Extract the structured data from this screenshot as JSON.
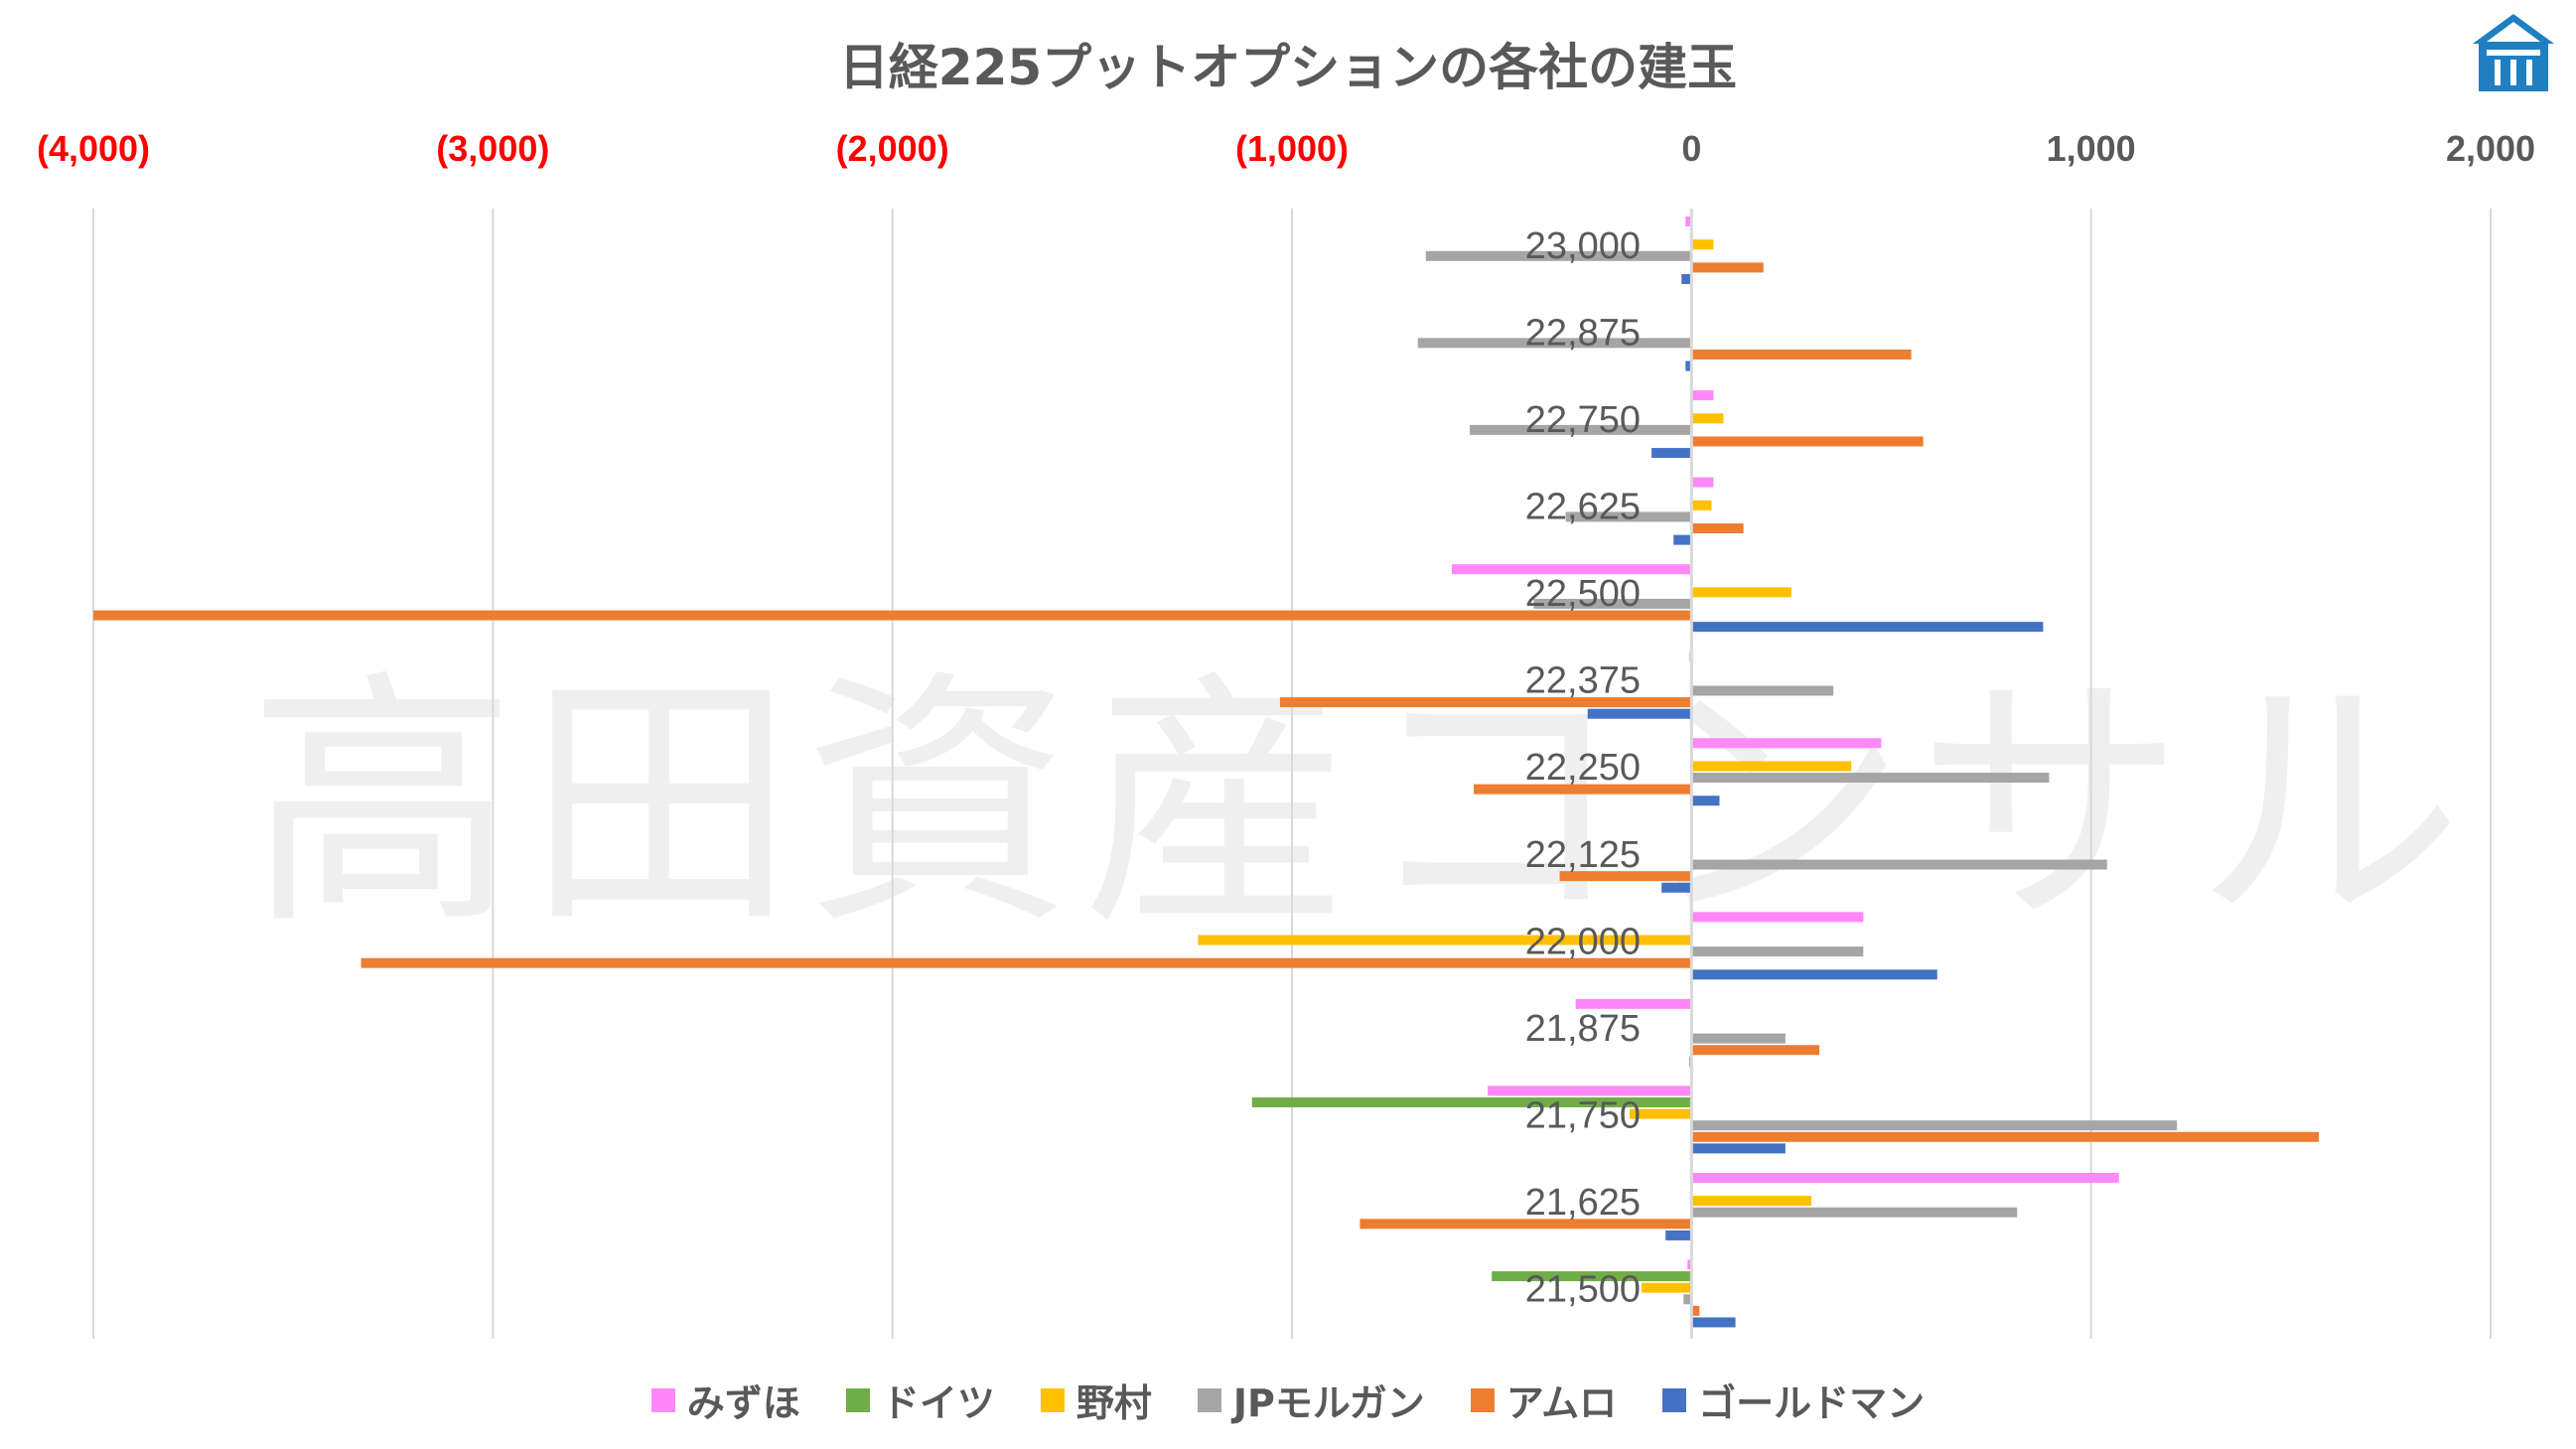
{
  "watermark": "高田資産コンサル",
  "chart_data": {
    "type": "bar",
    "orientation": "horizontal",
    "title": "日経225プットオプションの各社の建玉",
    "xlim": [
      -4000,
      2000
    ],
    "xticks": [
      -4000,
      -3000,
      -2000,
      -1000,
      0,
      1000,
      2000
    ],
    "xtick_labels": [
      "(4,000)",
      "(3,000)",
      "(2,000)",
      "(1,000)",
      "0",
      "1,000",
      "2,000"
    ],
    "negative_tick_color": "#FF0000",
    "grid": true,
    "legend_position": "bottom",
    "categories": [
      "23,000",
      "22,875",
      "22,750",
      "22,625",
      "22,500",
      "22,375",
      "22,250",
      "22,125",
      "22,000",
      "21,875",
      "21,750",
      "21,625",
      "21,500"
    ],
    "series": [
      {
        "name": "みずほ",
        "color": "#FF88F8",
        "values": [
          -15,
          0,
          55,
          55,
          -600,
          -5,
          475,
          0,
          430,
          -290,
          -510,
          1070,
          -10
        ]
      },
      {
        "name": "ドイツ",
        "color": "#70AD47",
        "values": [
          0,
          0,
          0,
          0,
          0,
          0,
          0,
          0,
          0,
          0,
          -1100,
          0,
          -500
        ]
      },
      {
        "name": "野村",
        "color": "#FFC000",
        "values": [
          55,
          0,
          80,
          50,
          250,
          0,
          400,
          0,
          -1235,
          0,
          -155,
          300,
          -125
        ]
      },
      {
        "name": "JPモルガン",
        "color": "#A5A5A5",
        "values": [
          -665,
          -685,
          -555,
          -315,
          -395,
          355,
          895,
          1040,
          430,
          235,
          1215,
          815,
          -20
        ]
      },
      {
        "name": "アムロ",
        "color": "#ED7D31",
        "values": [
          180,
          550,
          580,
          130,
          -4000,
          -1030,
          -545,
          -330,
          -3330,
          320,
          1570,
          -830,
          20
        ]
      },
      {
        "name": "ゴールドマン",
        "color": "#4472C4",
        "values": [
          -25,
          -15,
          -100,
          -45,
          880,
          -260,
          70,
          -75,
          615,
          -5,
          235,
          -65,
          110
        ]
      }
    ]
  }
}
